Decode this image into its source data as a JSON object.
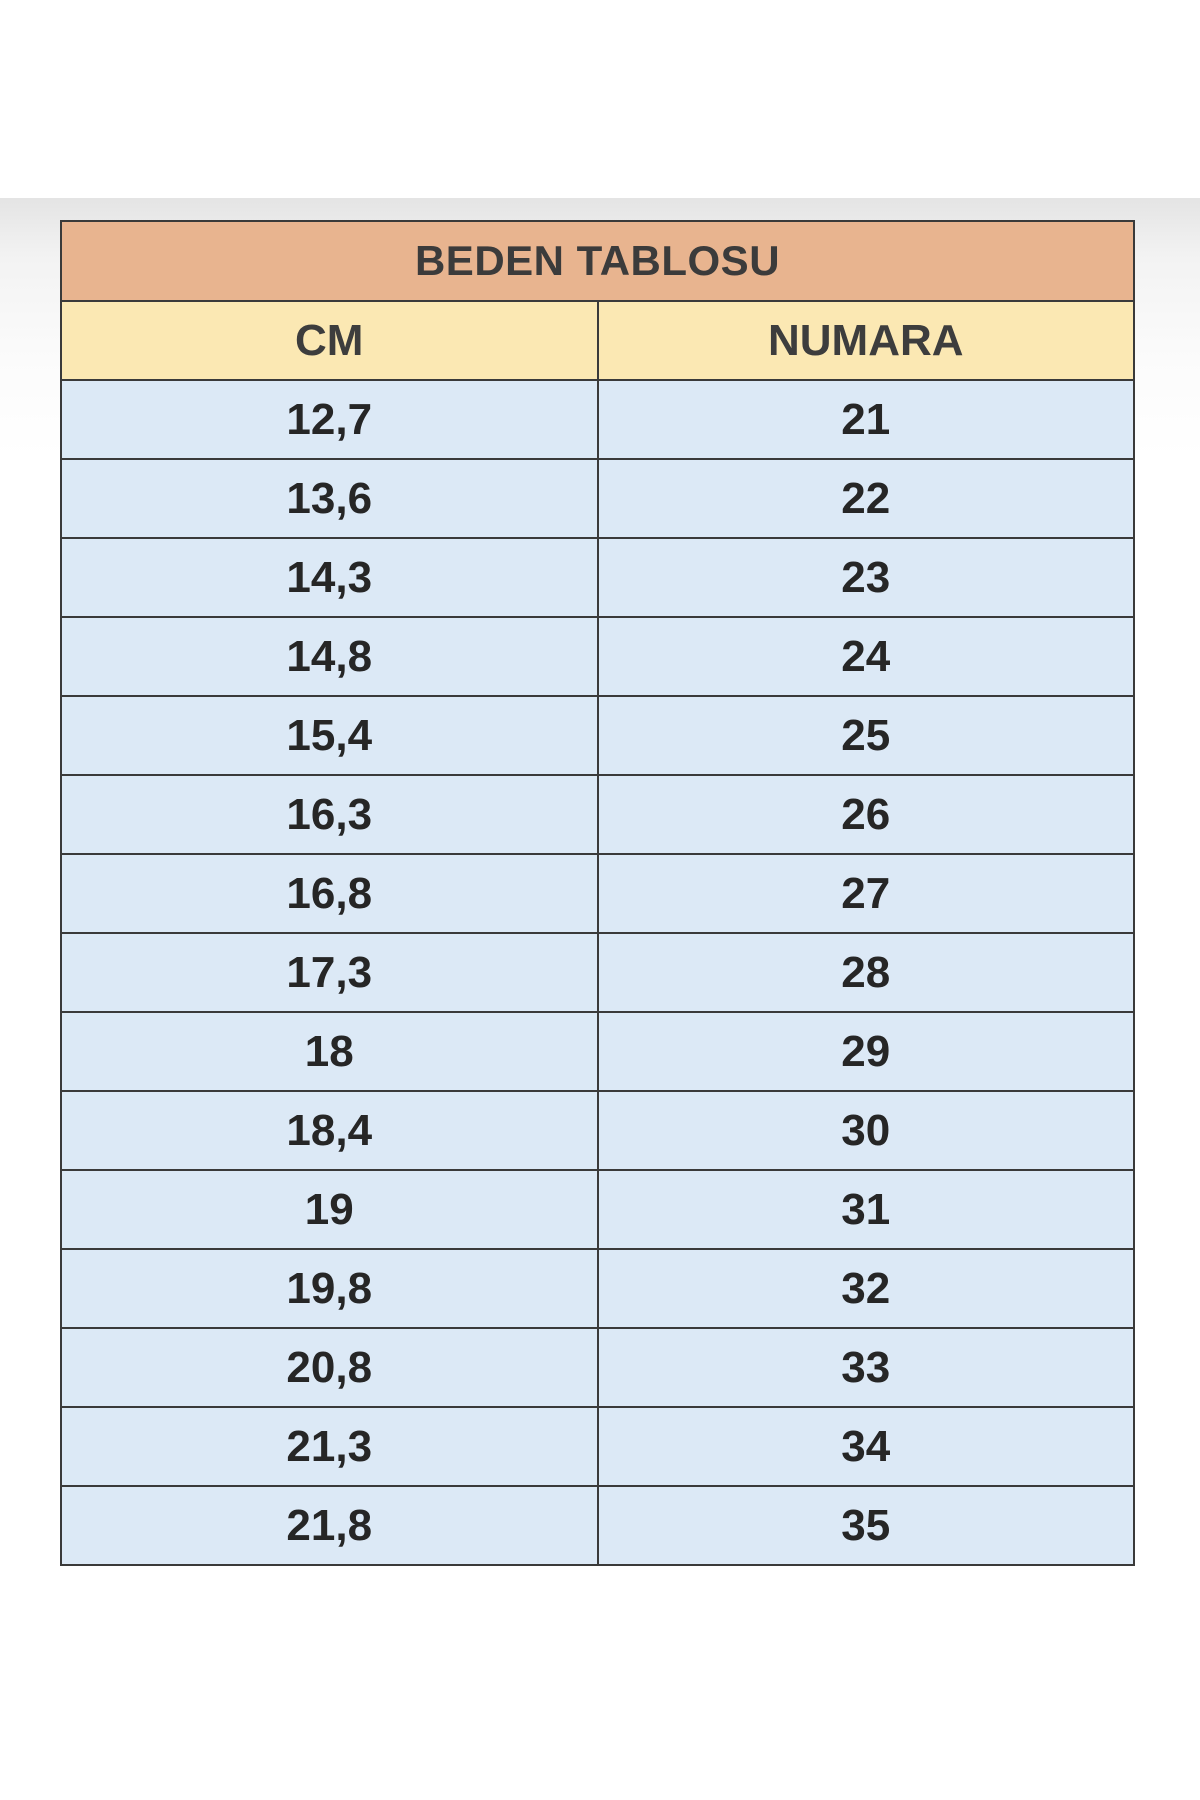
{
  "table": {
    "title": "BEDEN TABLOSU",
    "columns": [
      "CM",
      "NUMARA"
    ],
    "rows": [
      [
        "12,7",
        "21"
      ],
      [
        "13,6",
        "22"
      ],
      [
        "14,3",
        "23"
      ],
      [
        "14,8",
        "24"
      ],
      [
        "15,4",
        "25"
      ],
      [
        "16,3",
        "26"
      ],
      [
        "16,8",
        "27"
      ],
      [
        "17,3",
        "28"
      ],
      [
        "18",
        "29"
      ],
      [
        "18,4",
        "30"
      ],
      [
        "19",
        "31"
      ],
      [
        "19,8",
        "32"
      ],
      [
        "20,8",
        "33"
      ],
      [
        "21,3",
        "34"
      ],
      [
        "21,8",
        "35"
      ]
    ]
  },
  "colors": {
    "title_bg": "#e8b48f",
    "header_bg": "#fbe8b3",
    "cell_bg": "#dce9f6",
    "border": "#3a3a3a"
  }
}
